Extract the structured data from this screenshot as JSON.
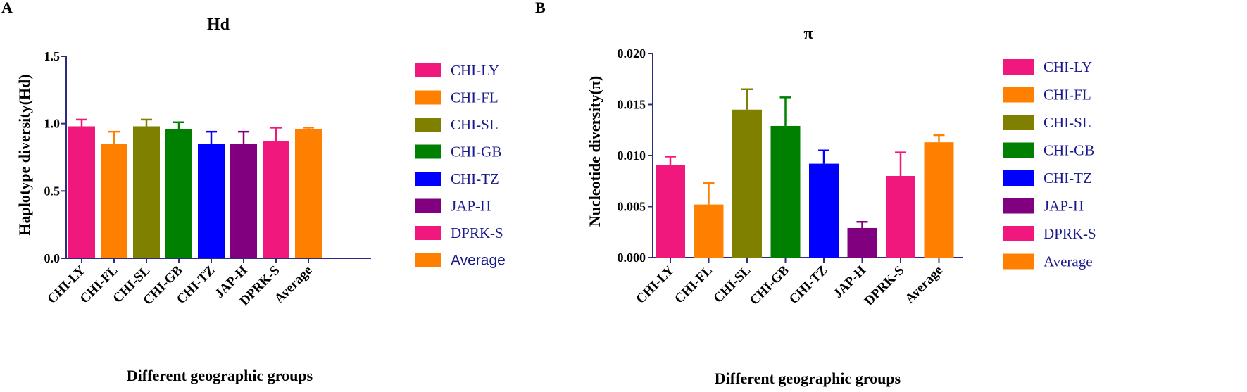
{
  "chart_data": [
    {
      "panel": "A",
      "type": "bar",
      "title": "Hd",
      "ylabel": "Haplotype diversity(Hd)",
      "xlabel": "Different geographic groups",
      "ylim": [
        0,
        1.5
      ],
      "yticks": [
        "0.0",
        "0.5",
        "1.0",
        "1.5"
      ],
      "ytick_values": [
        0,
        0.5,
        1.0,
        1.5
      ],
      "categories": [
        "CHI-LY",
        "CHI-FL",
        "CHI-SL",
        "CHI-GB",
        "CHI-TZ",
        "JAP-H",
        "DPRK-S",
        "Average"
      ],
      "values": [
        0.98,
        0.85,
        0.98,
        0.96,
        0.85,
        0.85,
        0.87,
        0.96
      ],
      "errors": [
        0.05,
        0.09,
        0.05,
        0.05,
        0.09,
        0.09,
        0.1,
        0.01
      ],
      "colors": [
        "#f0177d",
        "#ff8000",
        "#808000",
        "#008000",
        "#0000ff",
        "#800080",
        "#f0177d",
        "#ff8000"
      ],
      "legend": [
        "CHI-LY",
        "CHI-FL",
        "CHI-SL",
        "CHI-GB",
        "CHI-TZ",
        "JAP-H",
        "DPRK-S",
        "Average"
      ],
      "legend_placement": "right"
    },
    {
      "panel": "B",
      "type": "bar",
      "title": "π",
      "ylabel": "Nucleotide diversity(π)",
      "xlabel": "Different geographic groups",
      "ylim": [
        0,
        0.02
      ],
      "yticks": [
        "0.000",
        "0.005",
        "0.010",
        "0.015",
        "0.020"
      ],
      "ytick_values": [
        0,
        0.005,
        0.01,
        0.015,
        0.02
      ],
      "categories": [
        "CHI-LY",
        "CHI-FL",
        "CHI-SL",
        "CHI-GB",
        "CHI-TZ",
        "JAP-H",
        "DPRK-S",
        "Average"
      ],
      "values": [
        0.0091,
        0.0052,
        0.0145,
        0.0129,
        0.0092,
        0.0029,
        0.008,
        0.0113
      ],
      "errors": [
        0.0008,
        0.0021,
        0.002,
        0.0028,
        0.0013,
        0.0006,
        0.0023,
        0.0007
      ],
      "colors": [
        "#f0177d",
        "#ff8000",
        "#808000",
        "#008000",
        "#0000ff",
        "#800080",
        "#f0177d",
        "#ff8000"
      ],
      "legend": [
        "CHI-LY",
        "CHI-FL",
        "CHI-SL",
        "CHI-GB",
        "CHI-TZ",
        "JAP-H",
        "DPRK-S",
        "Average"
      ],
      "legend_placement": "right"
    }
  ],
  "axis_color": "#2b2b80",
  "legend_text_color": "#1a1a8c"
}
